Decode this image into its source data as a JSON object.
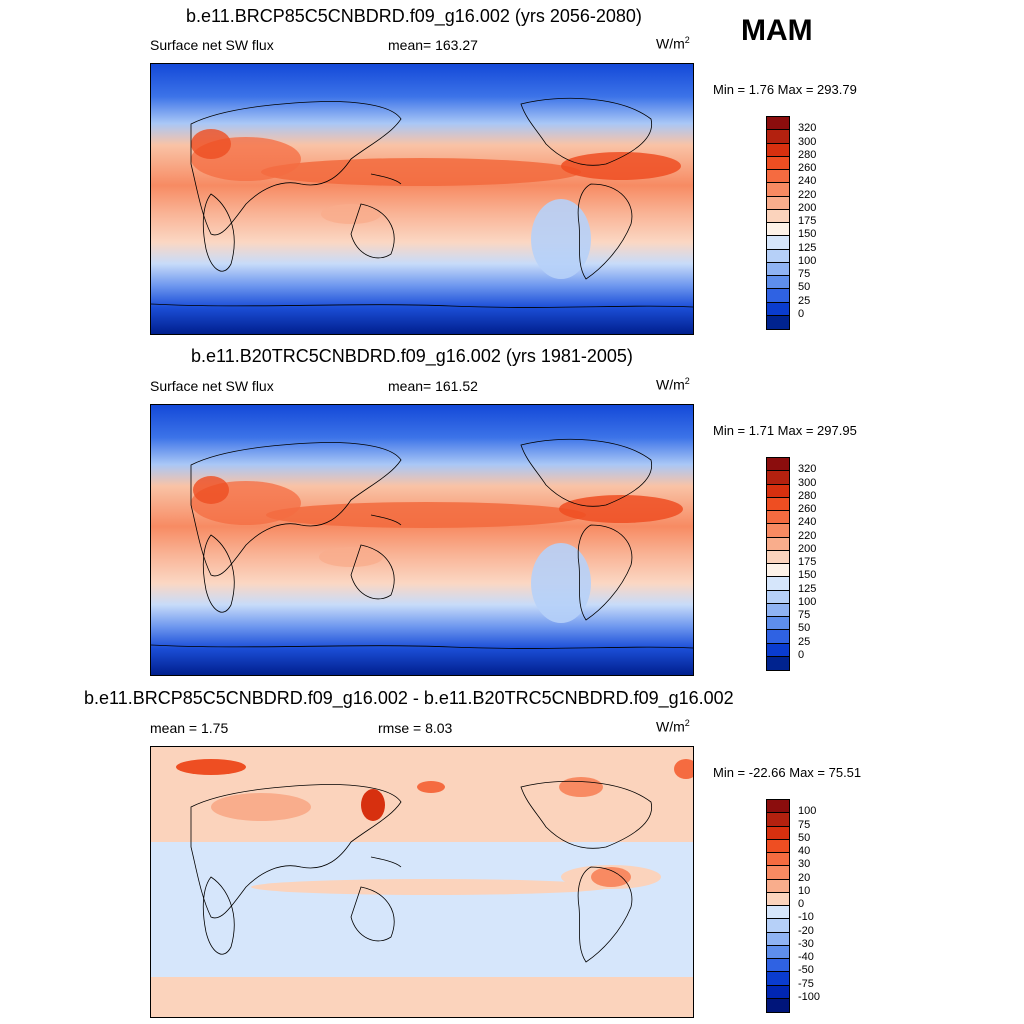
{
  "season": "MAM",
  "panels": [
    {
      "title": "b.e11.BRCP85C5CNBDRD.f09_g16.002 (yrs 2056-2080)",
      "left_label": "Surface net SW flux",
      "center_label": "mean= 163.27",
      "units": "W/m",
      "units_sup": "2",
      "minmax": "Min =   1.76 Max = 293.79"
    },
    {
      "title": "b.e11.B20TRC5CNBDRD.f09_g16.002 (yrs 1981-2005)",
      "left_label": "Surface net SW flux",
      "center_label": "mean= 161.52",
      "units": "W/m",
      "units_sup": "2",
      "minmax": "Min =   1.71 Max = 297.95"
    },
    {
      "title": "b.e11.BRCP85C5CNBDRD.f09_g16.002 - b.e11.B20TRC5CNBDRD.f09_g16.002",
      "left_label": "mean =   1.75",
      "center_label": "rmse =   8.03",
      "units": "W/m",
      "units_sup": "2",
      "minmax": "Min = -22.66 Max =  75.51"
    }
  ],
  "colorbar_abs": {
    "labels": [
      "320",
      "300",
      "280",
      "260",
      "240",
      "220",
      "200",
      "175",
      "150",
      "125",
      "100",
      "75",
      "50",
      "25",
      "0"
    ],
    "colors": [
      "#8b0d0d",
      "#b3210f",
      "#d7300f",
      "#ee4e22",
      "#f56b40",
      "#f88a62",
      "#f9ad8c",
      "#fbd3bc",
      "#fdf2e8",
      "#d6e6fb",
      "#b6d0f8",
      "#8fb3f3",
      "#5e8eec",
      "#2f62e3",
      "#0a3ccf",
      "#00238f"
    ]
  },
  "colorbar_diff": {
    "labels": [
      "100",
      "75",
      "50",
      "40",
      "30",
      "20",
      "10",
      "0",
      "-10",
      "-20",
      "-30",
      "-40",
      "-50",
      "-75",
      "-100"
    ],
    "colors": [
      "#8b0d0d",
      "#b3210f",
      "#d7300f",
      "#ee4e22",
      "#f56b40",
      "#f88a62",
      "#f9ad8c",
      "#fbd3bc",
      "#d6e6fb",
      "#b6d0f8",
      "#8fb3f3",
      "#5e8eec",
      "#2f62e3",
      "#0a3ccf",
      "#0026b3",
      "#00157a"
    ]
  }
}
